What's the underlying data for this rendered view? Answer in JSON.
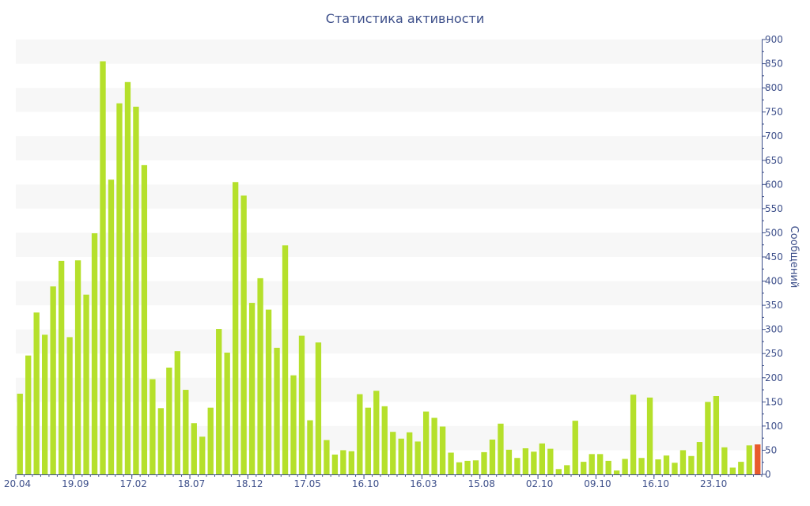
{
  "chart_data": {
    "type": "bar",
    "title": "Статистика активности",
    "ylabel": "Сообщений",
    "ylim": [
      0,
      900
    ],
    "y_ticks": [
      0,
      50,
      100,
      150,
      200,
      250,
      300,
      350,
      400,
      450,
      500,
      550,
      600,
      650,
      700,
      750,
      800,
      850,
      900
    ],
    "x_tick_labels": [
      {
        "index": 0,
        "label": "20.04"
      },
      {
        "index": 7,
        "label": "19.09"
      },
      {
        "index": 14,
        "label": "17.02"
      },
      {
        "index": 21,
        "label": "18.07"
      },
      {
        "index": 28,
        "label": "18.12"
      },
      {
        "index": 35,
        "label": "17.05"
      },
      {
        "index": 42,
        "label": "16.10"
      },
      {
        "index": 49,
        "label": "16.03"
      },
      {
        "index": 56,
        "label": "15.08"
      },
      {
        "index": 63,
        "label": "02.10"
      },
      {
        "index": 70,
        "label": "09.10"
      },
      {
        "index": 77,
        "label": "16.10"
      },
      {
        "index": 84,
        "label": "23.10"
      }
    ],
    "values": [
      167,
      246,
      335,
      289,
      389,
      442,
      284,
      443,
      372,
      499,
      855,
      610,
      768,
      812,
      761,
      640,
      197,
      137,
      221,
      255,
      175,
      106,
      78,
      138,
      301,
      252,
      605,
      577,
      355,
      406,
      341,
      262,
      474,
      205,
      287,
      112,
      273,
      71,
      41,
      50,
      48,
      166,
      138,
      173,
      141,
      88,
      74,
      87,
      68,
      130,
      117,
      99,
      45,
      25,
      28,
      29,
      46,
      72,
      105,
      51,
      34,
      54,
      47,
      64,
      53,
      11,
      19,
      111,
      26,
      42,
      42,
      28,
      8,
      32,
      165,
      34,
      159,
      31,
      39,
      24,
      50,
      38,
      67,
      150,
      162,
      56,
      14,
      26,
      60,
      62
    ],
    "colors": {
      "bar": "#b5e02b",
      "current_bar": "#e85a2b",
      "band": "#f7f7f7",
      "axis": "#3d4f8a"
    },
    "highlight_last": true,
    "grid": "alternating bands"
  }
}
